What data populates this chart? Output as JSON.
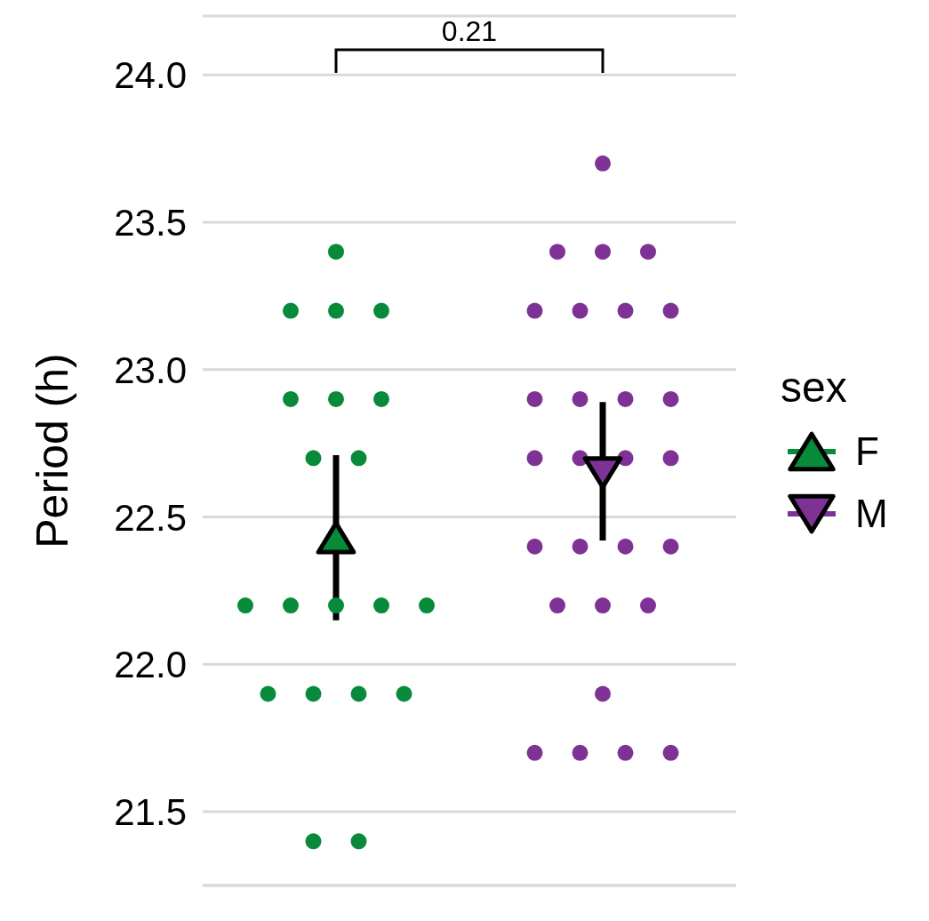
{
  "chart_data": {
    "type": "scatter",
    "ylabel": "Period (h)",
    "legend_title": "sex",
    "annotations": [
      "0.21"
    ],
    "categories": [
      null,
      null
    ],
    "ylim": [
      21.25,
      24.2
    ],
    "yticks": [
      {
        "value": 21.5,
        "label": "21.5"
      },
      {
        "value": 22,
        "label": "22.0"
      },
      {
        "value": 22.5,
        "label": "22.5"
      },
      {
        "value": 23,
        "label": "23.0"
      },
      {
        "value": 23.5,
        "label": "23.5"
      },
      {
        "value": 24,
        "label": "24.0"
      }
    ],
    "grid": "y",
    "legend": "right",
    "tick_labels": "y",
    "marker": "circle",
    "series": [
      {
        "colors": [
          "#078b3b",
          "#7e3295"
        ],
        "values": [
          23.4,
          23.7
        ]
      },
      {
        "colors": [
          "#078b3b",
          "#7e3295"
        ],
        "values": [
          23.2,
          23.4
        ]
      },
      {
        "colors": [
          "#078b3b",
          "#7e3295"
        ],
        "values": [
          23.2,
          23.4
        ]
      },
      {
        "colors": [
          "#078b3b",
          "#7e3295"
        ],
        "values": [
          23.2,
          23.4
        ]
      },
      {
        "colors": [
          "#078b3b",
          "#7e3295"
        ],
        "values": [
          22.9,
          23.2
        ]
      },
      {
        "colors": [
          "#078b3b",
          "#7e3295"
        ],
        "values": [
          22.9,
          23.2
        ]
      },
      {
        "colors": [
          "#078b3b",
          "#7e3295"
        ],
        "values": [
          22.9,
          23.2
        ]
      },
      {
        "colors": [
          "#078b3b",
          "#7e3295"
        ],
        "values": [
          22.7,
          23.2
        ]
      },
      {
        "colors": [
          "#078b3b",
          "#7e3295"
        ],
        "values": [
          22.7,
          22.9
        ]
      },
      {
        "colors": [
          "#078b3b",
          "#7e3295"
        ],
        "values": [
          22.2,
          22.9
        ]
      },
      {
        "colors": [
          "#078b3b",
          "#7e3295"
        ],
        "values": [
          22.2,
          22.9
        ]
      },
      {
        "colors": [
          "#078b3b",
          "#7e3295"
        ],
        "values": [
          22.2,
          22.9
        ]
      },
      {
        "colors": [
          "#078b3b",
          "#7e3295"
        ],
        "values": [
          22.2,
          22.7
        ]
      },
      {
        "colors": [
          "#078b3b",
          "#7e3295"
        ],
        "values": [
          22.2,
          22.7
        ]
      },
      {
        "colors": [
          "#078b3b",
          "#7e3295"
        ],
        "values": [
          21.9,
          22.7
        ]
      },
      {
        "colors": [
          "#078b3b",
          "#7e3295"
        ],
        "values": [
          21.9,
          22.7
        ]
      },
      {
        "colors": [
          "#078b3b",
          "#7e3295"
        ],
        "values": [
          21.9,
          22.4
        ]
      },
      {
        "colors": [
          "#078b3b",
          "#7e3295"
        ],
        "values": [
          21.9,
          22.4
        ]
      },
      {
        "colors": [
          "#078b3b",
          "#7e3295"
        ],
        "values": [
          21.4,
          22.4
        ]
      },
      {
        "colors": [
          "#078b3b",
          "#7e3295"
        ],
        "values": [
          21.4,
          22.4
        ]
      },
      {
        "colors": [
          "#078b3b",
          "#7e3295"
        ],
        "values": [
          null,
          22.2
        ]
      },
      {
        "colors": [
          "#078b3b",
          "#7e3295"
        ],
        "values": [
          null,
          22.2
        ]
      },
      {
        "colors": [
          "#078b3b",
          "#7e3295"
        ],
        "values": [
          null,
          22.2
        ]
      },
      {
        "colors": [
          "#078b3b",
          "#7e3295"
        ],
        "values": [
          null,
          21.9
        ]
      },
      {
        "colors": [
          "#078b3b",
          "#7e3295"
        ],
        "values": [
          null,
          21.7
        ]
      },
      {
        "colors": [
          "#078b3b",
          "#7e3295"
        ],
        "values": [
          null,
          21.7
        ]
      },
      {
        "colors": [
          "#078b3b",
          "#7e3295"
        ],
        "values": [
          null,
          21.7
        ]
      },
      {
        "colors": [
          "#078b3b",
          "#7e3295"
        ],
        "values": [
          null,
          21.7
        ]
      },
      {
        "name": "F",
        "color": "#078b3b",
        "marker": "triangle",
        "values": [
          22.43,
          null
        ],
        "errors": [
          [
            22.15,
            22.71
          ],
          null
        ]
      },
      {
        "name": "M",
        "color": "#7e3295",
        "marker": "triangle-down",
        "values": [
          null,
          22.65
        ],
        "errors": [
          null,
          [
            22.42,
            22.89
          ]
        ]
      }
    ]
  }
}
